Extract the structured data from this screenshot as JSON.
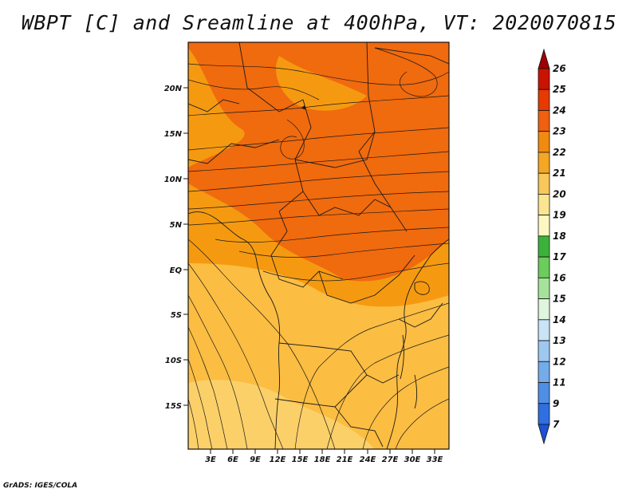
{
  "title": "WBPT [C] and Sreamline at 400hPa, VT: 2020070815",
  "credit": "GrADS: IGES/COLA",
  "map": {
    "lat_labels": [
      "20N",
      "15N",
      "10N",
      "5N",
      "EQ",
      "5S",
      "10S",
      "15S"
    ],
    "lon_labels": [
      "3E",
      "6E",
      "9E",
      "12E",
      "15E",
      "18E",
      "21E",
      "24E",
      "27E",
      "30E",
      "33E"
    ],
    "fill_colors": {
      "warm_dark": "#f06a0e",
      "warm_mid": "#f59a10",
      "warm_light": "#fbbd42",
      "pale": "#fde08a",
      "border": "#1a1a1a",
      "streamline": "#1a1a1a"
    }
  },
  "colorbar": {
    "labels": [
      "26",
      "25",
      "24",
      "23",
      "22",
      "21",
      "20",
      "19",
      "18",
      "17",
      "16",
      "15",
      "14",
      "13",
      "12",
      "11",
      "9",
      "7"
    ],
    "colors": [
      "#a00000",
      "#c81400",
      "#e63a00",
      "#f06010",
      "#f28a10",
      "#f5a623",
      "#f7c85a",
      "#fbe591",
      "#fdf7c2",
      "#3bb33b",
      "#6ccc5c",
      "#a6e39a",
      "#dff5de",
      "#c9e4f7",
      "#9ec8ef",
      "#74acea",
      "#4f8fe6",
      "#2f6fe0",
      "#1c52d6"
    ]
  }
}
